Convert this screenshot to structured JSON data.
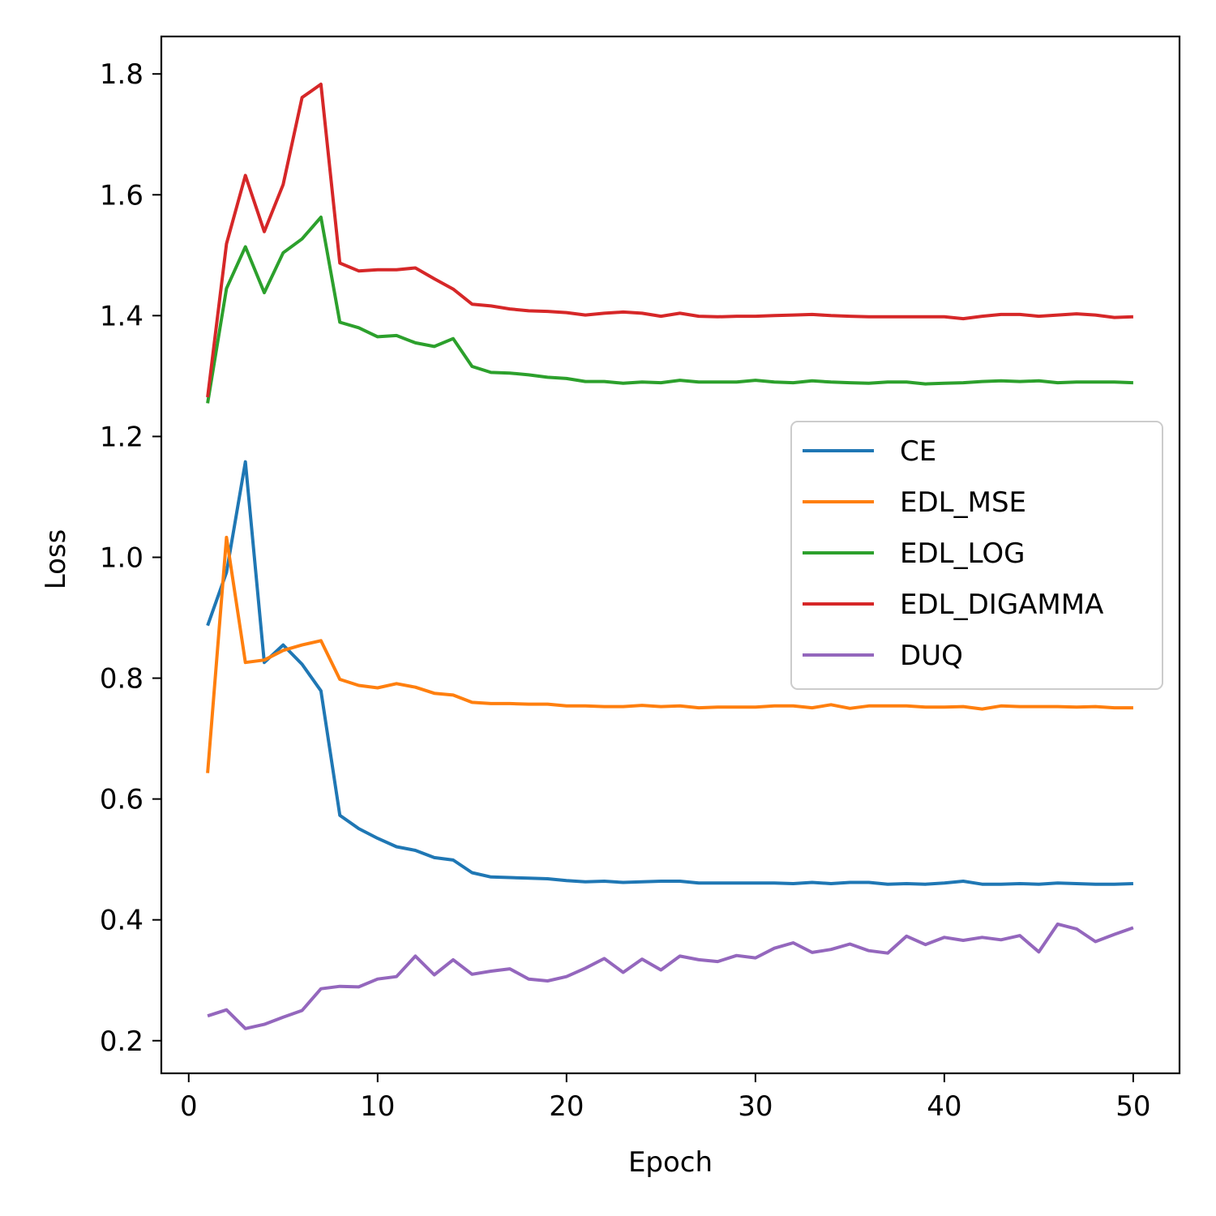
{
  "chart_data": {
    "type": "line",
    "title": "",
    "xlabel": "Epoch",
    "ylabel": "Loss",
    "xlim": [
      -1.45,
      52.45
    ],
    "ylim": [
      0.146,
      1.862
    ],
    "xticks": [
      0,
      10,
      20,
      30,
      40,
      50
    ],
    "yticks": [
      0.2,
      0.4,
      0.6,
      0.8,
      1.0,
      1.2,
      1.4,
      1.6,
      1.8
    ],
    "grid": false,
    "legend_position": "center-right",
    "x": [
      1,
      2,
      3,
      4,
      5,
      6,
      7,
      8,
      9,
      10,
      11,
      12,
      13,
      14,
      15,
      16,
      17,
      18,
      19,
      20,
      21,
      22,
      23,
      24,
      25,
      26,
      27,
      28,
      29,
      30,
      31,
      32,
      33,
      34,
      35,
      36,
      37,
      38,
      39,
      40,
      41,
      42,
      43,
      44,
      45,
      46,
      47,
      48,
      49,
      50
    ],
    "series": [
      {
        "name": "CE",
        "color": "#1f77b4",
        "values": [
          0.887,
          0.975,
          1.158,
          0.826,
          0.855,
          0.823,
          0.779,
          0.573,
          0.551,
          0.535,
          0.521,
          0.515,
          0.503,
          0.499,
          0.478,
          0.471,
          0.47,
          0.469,
          0.468,
          0.465,
          0.463,
          0.464,
          0.462,
          0.463,
          0.464,
          0.464,
          0.461,
          0.461,
          0.461,
          0.461,
          0.461,
          0.46,
          0.462,
          0.46,
          0.462,
          0.462,
          0.459,
          0.46,
          0.459,
          0.461,
          0.464,
          0.459,
          0.459,
          0.46,
          0.459,
          0.461,
          0.46,
          0.459,
          0.459,
          0.46
        ]
      },
      {
        "name": "EDL_MSE",
        "color": "#ff7f0e",
        "values": [
          0.643,
          1.033,
          0.826,
          0.83,
          0.846,
          0.855,
          0.862,
          0.798,
          0.788,
          0.784,
          0.791,
          0.785,
          0.775,
          0.772,
          0.76,
          0.758,
          0.758,
          0.757,
          0.757,
          0.754,
          0.754,
          0.753,
          0.753,
          0.755,
          0.753,
          0.754,
          0.751,
          0.752,
          0.752,
          0.752,
          0.754,
          0.754,
          0.751,
          0.756,
          0.75,
          0.754,
          0.754,
          0.754,
          0.752,
          0.752,
          0.753,
          0.749,
          0.754,
          0.753,
          0.753,
          0.753,
          0.752,
          0.753,
          0.751,
          0.751
        ]
      },
      {
        "name": "EDL_LOG",
        "color": "#2ca02c",
        "values": [
          1.255,
          1.445,
          1.514,
          1.438,
          1.504,
          1.527,
          1.563,
          1.389,
          1.38,
          1.365,
          1.367,
          1.355,
          1.349,
          1.362,
          1.316,
          1.306,
          1.305,
          1.302,
          1.298,
          1.296,
          1.291,
          1.291,
          1.288,
          1.29,
          1.289,
          1.293,
          1.29,
          1.29,
          1.29,
          1.293,
          1.29,
          1.289,
          1.292,
          1.29,
          1.289,
          1.288,
          1.29,
          1.29,
          1.287,
          1.288,
          1.289,
          1.291,
          1.292,
          1.291,
          1.292,
          1.289,
          1.29,
          1.29,
          1.29,
          1.289
        ]
      },
      {
        "name": "EDL_DIGAMMA",
        "color": "#d62728",
        "values": [
          1.265,
          1.519,
          1.632,
          1.539,
          1.617,
          1.761,
          1.783,
          1.487,
          1.474,
          1.476,
          1.476,
          1.479,
          1.461,
          1.444,
          1.419,
          1.416,
          1.411,
          1.408,
          1.407,
          1.405,
          1.401,
          1.404,
          1.406,
          1.404,
          1.399,
          1.404,
          1.399,
          1.398,
          1.399,
          1.399,
          1.4,
          1.401,
          1.402,
          1.4,
          1.399,
          1.398,
          1.398,
          1.398,
          1.398,
          1.398,
          1.395,
          1.399,
          1.402,
          1.402,
          1.399,
          1.401,
          1.403,
          1.401,
          1.397,
          1.398
        ]
      },
      {
        "name": "DUQ",
        "color": "#9467bd",
        "values": [
          0.241,
          0.251,
          0.22,
          0.227,
          0.239,
          0.25,
          0.286,
          0.29,
          0.289,
          0.302,
          0.306,
          0.34,
          0.309,
          0.334,
          0.31,
          0.315,
          0.319,
          0.302,
          0.299,
          0.306,
          0.32,
          0.336,
          0.313,
          0.335,
          0.317,
          0.34,
          0.334,
          0.331,
          0.341,
          0.337,
          0.353,
          0.362,
          0.346,
          0.351,
          0.36,
          0.349,
          0.345,
          0.373,
          0.359,
          0.371,
          0.366,
          0.371,
          0.367,
          0.374,
          0.347,
          0.393,
          0.385,
          0.364,
          0.376,
          0.387
        ]
      }
    ]
  }
}
